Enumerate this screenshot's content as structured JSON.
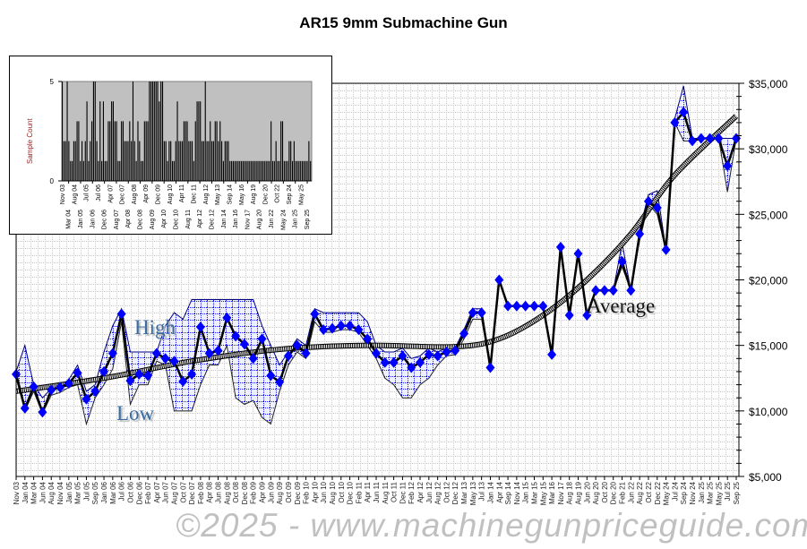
{
  "chart_data": [
    {
      "type": "line",
      "title": "AR15 9mm Submachine Gun",
      "ylim": [
        5000,
        35000
      ],
      "y_ticks": [
        "$5,000",
        "$10,000",
        "$15,000",
        "$20,000",
        "$25,000",
        "$30,000",
        "$35,000"
      ],
      "y_tick_values": [
        5000,
        10000,
        15000,
        20000,
        25000,
        30000,
        35000
      ],
      "y_axis_position": "right",
      "grid": true,
      "categories": [
        "Nov 03",
        "Jan 04",
        "Mar 04",
        "Jun 04",
        "Aug 04",
        "Nov 04",
        "Jan 05",
        "Mar 05",
        "Jul 05",
        "Sep 05",
        "Jan 06",
        "Mar 06",
        "Jul 06",
        "Oct 06",
        "Dec 06",
        "Feb 07",
        "Apr 07",
        "Jun 07",
        "Aug 07",
        "Oct 07",
        "Dec 07",
        "Feb 08",
        "Apr 08",
        "Jun 08",
        "Aug 08",
        "Oct 08",
        "Dec 08",
        "Feb 09",
        "Apr 09",
        "Jun 09",
        "Aug 09",
        "Oct 09",
        "Dec 09",
        "Feb 10",
        "Apr 10",
        "Jun 10",
        "Aug 10",
        "Oct 10",
        "Dec 10",
        "Feb 11",
        "Apr 11",
        "Jun 11",
        "Aug 11",
        "Oct 11",
        "Dec 11",
        "Feb 12",
        "Apr 12",
        "Jun 12",
        "Aug 12",
        "Oct 12",
        "Dec 12",
        "Mar 13",
        "May 13",
        "Jul 13",
        "Jan 14",
        "Apr 14",
        "Sep 14",
        "Nov 14",
        "Jan 15",
        "Mar 15",
        "May 15",
        "Mar 16",
        "Nov 17",
        "Aug 18",
        "Aug 19",
        "Jun 20",
        "Aug 20",
        "Oct 20",
        "Dec 20",
        "Feb 21",
        "Jun 22",
        "Aug 22",
        "Oct 22",
        "Dec 22",
        "May 24",
        "Jul 24",
        "Sep 24",
        "Nov 24",
        "Jan 25",
        "Mar 25",
        "May 25",
        "Jul 25",
        "Sep 25"
      ],
      "series": [
        {
          "name": "Average",
          "color": "#0000ff",
          "values": [
            12800,
            10200,
            11850,
            9900,
            11600,
            11800,
            12100,
            12900,
            10900,
            11500,
            13000,
            14400,
            17400,
            12300,
            12800,
            12700,
            14400,
            14000,
            13800,
            12250,
            12800,
            16400,
            14400,
            14600,
            17100,
            15700,
            15100,
            14000,
            15500,
            12700,
            12200,
            14200,
            15000,
            14400,
            17400,
            16200,
            16300,
            16500,
            16500,
            16200,
            15500,
            14400,
            13700,
            13700,
            14200,
            13300,
            13700,
            14300,
            14200,
            14500,
            14600,
            15900,
            17500,
            17500,
            13300,
            20000,
            18000,
            18000,
            18000,
            18000,
            18000,
            14300,
            22500,
            17300,
            22000,
            17300,
            19200,
            19200,
            19200,
            21400,
            19200,
            23500,
            26000,
            25500,
            22300,
            32000,
            32800,
            30600,
            30800,
            30800,
            30800,
            28700,
            30800
          ]
        },
        {
          "name": "High",
          "color": "#000080",
          "values": [
            13000,
            15000,
            12000,
            11000,
            11700,
            11900,
            12400,
            13500,
            11500,
            12000,
            14500,
            16500,
            17800,
            14500,
            14500,
            14500,
            14500,
            16500,
            17500,
            17000,
            18500,
            18500,
            18500,
            18500,
            18500,
            18500,
            18500,
            18500,
            16500,
            15000,
            13500,
            14500,
            15500,
            15000,
            17800,
            17500,
            17500,
            17500,
            17500,
            17500,
            16800,
            15000,
            14500,
            14500,
            14800,
            14000,
            14200,
            14800,
            14500,
            14800,
            14800,
            16200,
            17800,
            17800,
            13500,
            20000,
            18000,
            18000,
            18000,
            18000,
            18000,
            14500,
            22500,
            17500,
            22000,
            17500,
            19200,
            19200,
            19200,
            22800,
            19200,
            23800,
            26500,
            26800,
            22300,
            32300,
            34800,
            30800,
            30800,
            30800,
            30800,
            30800,
            30800
          ]
        },
        {
          "name": "Low",
          "color": "#000080",
          "values": [
            12500,
            10000,
            11500,
            9800,
            11200,
            11400,
            11800,
            12000,
            9000,
            11000,
            12000,
            13200,
            16800,
            10500,
            12000,
            12000,
            13800,
            13500,
            10000,
            10000,
            10000,
            12000,
            13500,
            13500,
            15000,
            11000,
            10500,
            10800,
            9500,
            9000,
            11500,
            13500,
            14500,
            14000,
            16800,
            16000,
            16000,
            16200,
            16200,
            16000,
            15000,
            14000,
            12500,
            12000,
            11000,
            11000,
            12000,
            12500,
            13500,
            14200,
            14300,
            15500,
            17000,
            17000,
            13300,
            20000,
            18000,
            18000,
            18000,
            18000,
            18000,
            14300,
            22500,
            17300,
            22000,
            17300,
            19200,
            19200,
            19200,
            21000,
            19200,
            23000,
            25800,
            25000,
            22300,
            32000,
            30600,
            30600,
            30800,
            30800,
            30800,
            26700,
            30800
          ]
        }
      ],
      "trend": {
        "indices": [
          0,
          10,
          20,
          30,
          40,
          50,
          55,
          60,
          65,
          70,
          75,
          82
        ],
        "values": [
          11500,
          12500,
          13800,
          14700,
          15000,
          14900,
          15500,
          17300,
          20000,
          23500,
          28000,
          32500
        ]
      },
      "annotations": [
        "High",
        "Low",
        "Average"
      ],
      "watermark": "©2025 - www.machinegunpriceguide.com"
    },
    {
      "type": "bar",
      "ylabel": "Sample Count",
      "ylim": [
        0,
        5
      ],
      "y_ticks": [
        "0",
        "5"
      ],
      "bar_color": "#000000",
      "background": "#c0c0c0",
      "x_tick_labels": [
        "Nov 03",
        "Mar 04",
        "Aug 04",
        "Jan 05",
        "Jul 05",
        "Jan 06",
        "Jul 06",
        "Dec 06",
        "Apr 07",
        "Aug 07",
        "Dec 07",
        "Apr 08",
        "Aug 08",
        "Dec 08",
        "Apr 09",
        "Aug 09",
        "Dec 09",
        "Apr 10",
        "Aug 10",
        "Dec 10",
        "Apr 11",
        "Aug 11",
        "Dec 11",
        "Apr 12",
        "Aug 12",
        "Dec 12",
        "May 13",
        "Jan 14",
        "Sep 14",
        "Jan 16",
        "May 16",
        "Nov 17",
        "Aug 19",
        "Aug 20",
        "Dec 20",
        "Jun 22",
        "Oct 22",
        "May 24",
        "Sep 24",
        "Jan 25",
        "May 25",
        "Sep 25"
      ],
      "values": [
        5,
        2,
        2,
        5,
        2,
        1,
        1,
        2,
        2,
        3,
        3,
        1,
        2,
        1,
        2,
        4,
        1,
        2,
        3,
        5,
        5,
        2,
        1,
        4,
        1,
        4,
        1,
        1,
        3,
        3,
        4,
        4,
        3,
        3,
        1,
        1,
        3,
        3,
        2,
        2,
        2,
        3,
        2,
        5,
        2,
        1,
        3,
        2,
        1,
        1,
        3,
        3,
        3,
        5,
        5,
        5,
        5,
        5,
        5,
        4,
        5,
        5,
        2,
        2,
        1,
        2,
        2,
        1,
        1,
        2,
        4,
        2,
        2,
        2,
        3,
        3,
        3,
        2,
        2,
        2,
        1,
        3,
        4,
        4,
        4,
        2,
        2,
        5,
        2,
        2,
        3,
        2,
        2,
        3,
        3,
        2,
        3,
        2,
        1,
        2,
        2,
        2,
        1,
        1,
        1,
        1,
        1,
        1,
        1,
        1,
        1,
        1,
        1,
        1,
        1,
        1,
        1,
        1,
        1,
        1,
        1,
        1,
        1,
        1,
        1,
        1,
        1,
        3,
        1,
        1,
        2,
        1,
        1,
        3,
        3,
        1,
        1,
        1,
        2,
        2,
        1,
        2,
        1,
        1,
        1,
        1,
        1,
        1,
        1,
        1,
        2,
        1
      ]
    }
  ]
}
